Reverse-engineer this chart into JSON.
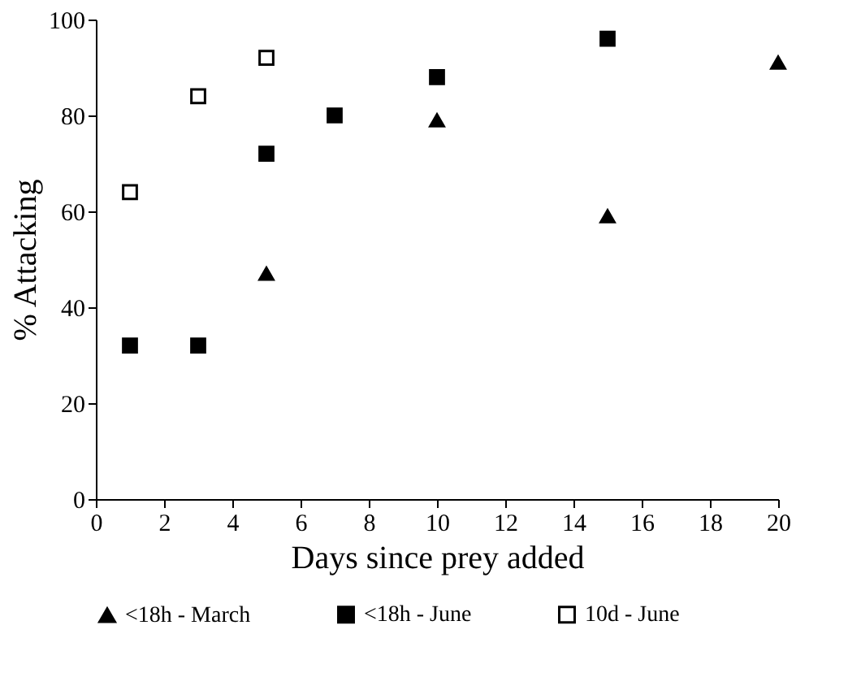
{
  "chart_data": {
    "type": "scatter",
    "xlabel": "Days since prey added",
    "ylabel": "% Attacking",
    "xlim": [
      0,
      20
    ],
    "xticks": [
      0,
      2,
      4,
      6,
      8,
      10,
      12,
      14,
      16,
      18,
      20
    ],
    "ylim": [
      0,
      100
    ],
    "yticks": [
      0,
      20,
      40,
      60,
      80,
      100
    ],
    "grid": false,
    "legend": "bottom",
    "series": [
      {
        "name": "<18h - March",
        "color": "#000000",
        "marker": "triangle",
        "x": [
          5,
          10,
          15,
          20
        ],
        "values": [
          47,
          79,
          59,
          91
        ]
      },
      {
        "name": "<18h - June",
        "color": "#000000",
        "marker": "square",
        "x": [
          1,
          3,
          5,
          7,
          10,
          15
        ],
        "values": [
          32,
          32,
          72,
          80,
          88,
          96
        ]
      },
      {
        "name": "10d - June",
        "color": "#ffffff",
        "marker": "square",
        "x": [
          1,
          3,
          5
        ],
        "values": [
          64,
          84,
          92
        ]
      }
    ]
  }
}
